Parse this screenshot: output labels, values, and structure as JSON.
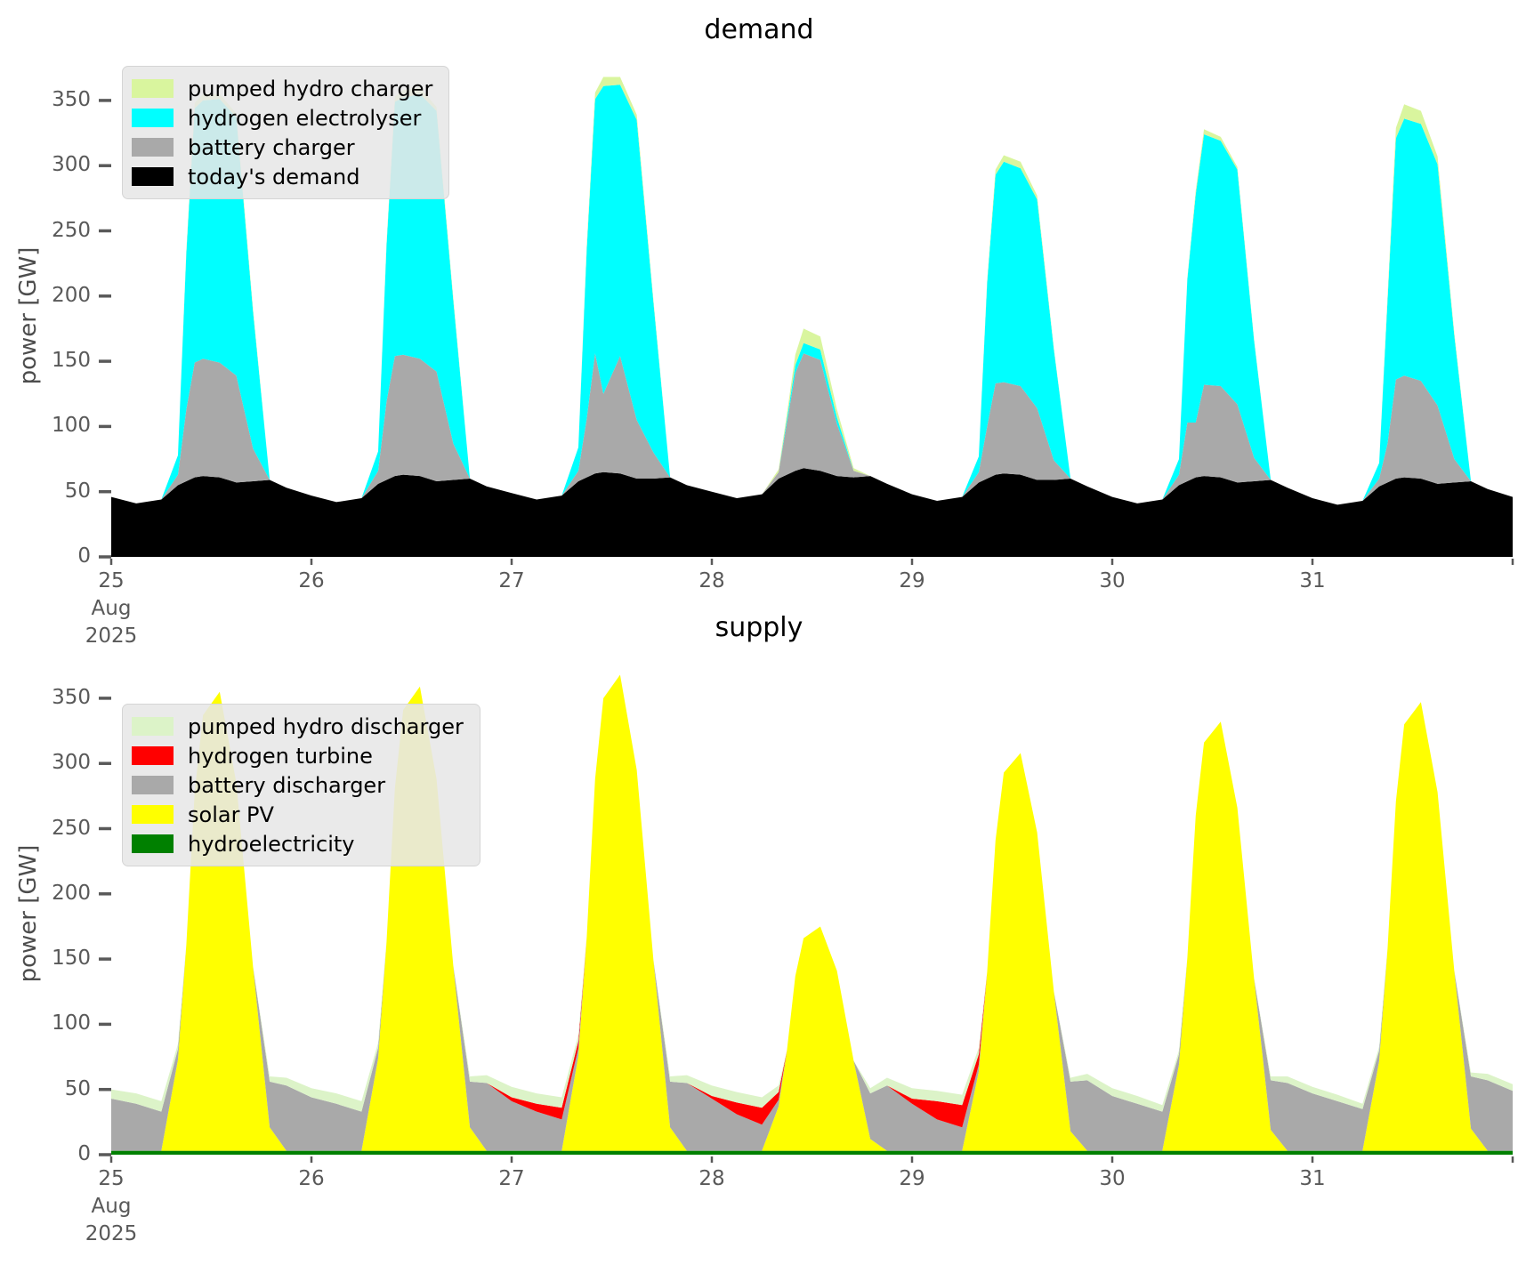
{
  "chart_data": [
    {
      "type": "area",
      "title": "demand",
      "ylabel": "power [GW]",
      "x_start_label_lines": [
        "25",
        "Aug",
        "2025"
      ],
      "x_tick_labels": [
        "25",
        "26",
        "27",
        "28",
        "29",
        "30",
        "31",
        ""
      ],
      "x_tick_hours": [
        0,
        24,
        48,
        72,
        96,
        120,
        144,
        168
      ],
      "y_ticks": [
        0,
        50,
        100,
        150,
        200,
        250,
        300,
        350
      ],
      "ylim": [
        0,
        372
      ],
      "xlim_hours": [
        0,
        168
      ],
      "grid": false,
      "legend_position": "upper left",
      "legend": [
        {
          "label": "pumped hydro charger",
          "color": "#d9f59e"
        },
        {
          "label": "hydrogen electrolyser",
          "color": "#00ffff"
        },
        {
          "label": "battery charger",
          "color": "#a9a9a9"
        },
        {
          "label": "today's demand",
          "color": "#000000"
        }
      ],
      "x_hours": [
        0,
        3,
        6,
        8,
        9,
        10,
        11,
        13,
        15,
        17,
        19,
        21,
        24,
        27,
        30,
        32,
        33,
        34,
        35,
        37,
        39,
        41,
        43,
        45,
        48,
        51,
        54,
        56,
        57,
        58,
        59,
        61,
        63,
        65,
        67,
        69,
        72,
        75,
        78,
        80,
        81,
        82,
        83,
        85,
        87,
        89,
        91,
        93,
        96,
        99,
        102,
        104,
        105,
        106,
        107,
        109,
        111,
        113,
        115,
        117,
        120,
        123,
        126,
        128,
        129,
        130,
        131,
        133,
        135,
        137,
        139,
        141,
        144,
        147,
        150,
        152,
        153,
        154,
        155,
        157,
        159,
        161,
        163,
        165,
        168
      ],
      "series": [
        {
          "name": "today's demand",
          "color": "#000000",
          "values": [
            46,
            41,
            44,
            55,
            58,
            61,
            62,
            61,
            57,
            58,
            59,
            53,
            47,
            42,
            45,
            56,
            59,
            62,
            63,
            62,
            58,
            59,
            60,
            54,
            49,
            44,
            47,
            58,
            61,
            64,
            65,
            64,
            60,
            60,
            61,
            55,
            50,
            45,
            48,
            60,
            63,
            66,
            68,
            66,
            62,
            61,
            62,
            56,
            48,
            43,
            46,
            57,
            60,
            63,
            64,
            63,
            59,
            59,
            60,
            54,
            46,
            41,
            44,
            55,
            58,
            61,
            62,
            61,
            57,
            58,
            59,
            53,
            45,
            40,
            43,
            54,
            57,
            60,
            61,
            60,
            56,
            57,
            58,
            52,
            46
          ]
        },
        {
          "name": "battery charger",
          "color": "#a9a9a9",
          "values": [
            0,
            0,
            0,
            8,
            55,
            88,
            90,
            88,
            82,
            25,
            0,
            0,
            0,
            0,
            0,
            10,
            60,
            92,
            92,
            90,
            84,
            28,
            0,
            0,
            0,
            0,
            0,
            8,
            45,
            92,
            60,
            90,
            45,
            20,
            0,
            0,
            0,
            0,
            0,
            5,
            40,
            75,
            88,
            85,
            40,
            5,
            0,
            0,
            0,
            0,
            0,
            8,
            40,
            70,
            70,
            68,
            55,
            15,
            0,
            0,
            0,
            0,
            0,
            8,
            45,
            42,
            70,
            70,
            60,
            18,
            0,
            0,
            0,
            0,
            0,
            6,
            30,
            76,
            78,
            75,
            60,
            18,
            0,
            0,
            0
          ]
        },
        {
          "name": "hydrogen electrolyser",
          "color": "#00ffff",
          "values": [
            0,
            0,
            0,
            15,
            120,
            195,
            198,
            202,
            198,
            105,
            0,
            0,
            0,
            0,
            0,
            15,
            120,
            195,
            197,
            203,
            200,
            110,
            0,
            0,
            0,
            0,
            0,
            18,
            130,
            195,
            236,
            208,
            230,
            115,
            0,
            0,
            0,
            0,
            0,
            0,
            3,
            6,
            8,
            8,
            5,
            0,
            0,
            0,
            0,
            0,
            0,
            12,
            110,
            160,
            169,
            167,
            160,
            85,
            0,
            0,
            0,
            0,
            0,
            12,
            110,
            175,
            192,
            188,
            180,
            90,
            0,
            0,
            0,
            0,
            0,
            12,
            110,
            185,
            197,
            197,
            185,
            95,
            0,
            0,
            0
          ]
        },
        {
          "name": "pumped hydro charger",
          "color": "#d9f59e",
          "values": [
            0,
            0,
            0,
            0,
            2,
            4,
            5,
            4,
            3,
            2,
            0,
            0,
            0,
            0,
            0,
            0,
            2,
            4,
            6,
            5,
            3,
            2,
            0,
            0,
            0,
            0,
            0,
            0,
            3,
            5,
            7,
            6,
            4,
            2,
            0,
            0,
            0,
            0,
            0,
            2,
            4,
            8,
            11,
            10,
            6,
            2,
            0,
            0,
            0,
            0,
            0,
            0,
            2,
            4,
            5,
            5,
            3,
            1,
            0,
            0,
            0,
            0,
            0,
            0,
            1,
            3,
            4,
            3,
            2,
            1,
            0,
            0,
            0,
            0,
            0,
            0,
            3,
            8,
            11,
            10,
            6,
            2,
            0,
            0,
            0
          ]
        }
      ]
    },
    {
      "type": "area",
      "title": "supply",
      "ylabel": "power [GW]",
      "x_start_label_lines": [
        "25",
        "Aug",
        "2025"
      ],
      "x_tick_labels": [
        "25",
        "26",
        "27",
        "28",
        "29",
        "30",
        "31",
        ""
      ],
      "x_tick_hours": [
        0,
        24,
        48,
        72,
        96,
        120,
        144,
        168
      ],
      "y_ticks": [
        0,
        50,
        100,
        150,
        200,
        250,
        300,
        350
      ],
      "ylim": [
        0,
        372
      ],
      "xlim_hours": [
        0,
        168
      ],
      "grid": false,
      "legend_position": "upper left",
      "legend": [
        {
          "label": "pumped hydro discharger",
          "color": "#dcf3c8"
        },
        {
          "label": "hydrogen turbine",
          "color": "#ff0000"
        },
        {
          "label": "battery discharger",
          "color": "#a9a9a9"
        },
        {
          "label": "solar PV",
          "color": "#ffff00"
        },
        {
          "label": "hydroelectricity",
          "color": "#008000"
        }
      ],
      "x_hours": [
        0,
        3,
        6,
        8,
        9,
        10,
        11,
        13,
        15,
        17,
        19,
        21,
        24,
        27,
        30,
        32,
        33,
        34,
        35,
        37,
        39,
        41,
        43,
        45,
        48,
        51,
        54,
        56,
        57,
        58,
        59,
        61,
        63,
        65,
        67,
        69,
        72,
        75,
        78,
        80,
        81,
        82,
        83,
        85,
        87,
        89,
        91,
        93,
        96,
        99,
        102,
        104,
        105,
        106,
        107,
        109,
        111,
        113,
        115,
        117,
        120,
        123,
        126,
        128,
        129,
        130,
        131,
        133,
        135,
        137,
        139,
        141,
        144,
        147,
        150,
        152,
        153,
        154,
        155,
        157,
        159,
        161,
        163,
        165,
        168
      ],
      "series": [
        {
          "name": "hydroelectricity",
          "color": "#008000",
          "values": [
            3,
            3,
            3,
            3,
            3,
            3,
            3,
            3,
            3,
            3,
            3,
            3,
            3,
            3,
            3,
            3,
            3,
            3,
            3,
            3,
            3,
            3,
            3,
            3,
            3,
            3,
            3,
            3,
            3,
            3,
            3,
            3,
            3,
            3,
            3,
            3,
            3,
            3,
            3,
            3,
            3,
            3,
            3,
            3,
            3,
            3,
            3,
            3,
            3,
            3,
            3,
            3,
            3,
            3,
            3,
            3,
            3,
            3,
            3,
            3,
            3,
            3,
            3,
            3,
            3,
            3,
            3,
            3,
            3,
            3,
            3,
            3,
            3,
            3,
            3,
            3,
            3,
            3,
            3,
            3,
            3,
            3,
            3,
            3,
            3
          ]
        },
        {
          "name": "solar PV",
          "color": "#ffff00",
          "values": [
            0,
            0,
            0,
            70,
            158,
            275,
            334,
            352,
            282,
            141,
            18,
            0,
            0,
            0,
            0,
            71,
            160,
            278,
            338,
            356,
            285,
            142,
            18,
            0,
            0,
            0,
            0,
            73,
            164,
            285,
            347,
            365,
            292,
            146,
            18,
            0,
            0,
            0,
            0,
            34,
            77,
            134,
            163,
            172,
            138,
            69,
            9,
            0,
            0,
            0,
            0,
            61,
            137,
            238,
            290,
            305,
            244,
            122,
            15,
            0,
            0,
            0,
            0,
            66,
            148,
            257,
            313,
            329,
            263,
            132,
            16,
            0,
            0,
            0,
            0,
            69,
            155,
            268,
            327,
            344,
            275,
            138,
            17,
            0,
            0
          ]
        },
        {
          "name": "battery discharger",
          "color": "#a9a9a9",
          "values": [
            40,
            36,
            30,
            8,
            0,
            0,
            0,
            0,
            0,
            0,
            35,
            50,
            41,
            36,
            30,
            8,
            0,
            0,
            0,
            0,
            0,
            0,
            35,
            52,
            38,
            30,
            24,
            6,
            0,
            0,
            0,
            0,
            0,
            0,
            35,
            52,
            40,
            28,
            20,
            5,
            0,
            0,
            0,
            0,
            0,
            0,
            35,
            50,
            36,
            24,
            18,
            5,
            0,
            0,
            0,
            0,
            0,
            0,
            38,
            54,
            42,
            36,
            30,
            8,
            0,
            0,
            0,
            0,
            0,
            0,
            38,
            52,
            44,
            38,
            32,
            8,
            0,
            0,
            0,
            0,
            0,
            0,
            40,
            54,
            46
          ]
        },
        {
          "name": "hydrogen turbine",
          "color": "#ff0000",
          "values": [
            0,
            0,
            0,
            0,
            0,
            0,
            0,
            0,
            0,
            0,
            0,
            0,
            0,
            0,
            0,
            0,
            0,
            0,
            0,
            0,
            0,
            0,
            0,
            0,
            3,
            6,
            9,
            5,
            0,
            0,
            0,
            0,
            0,
            0,
            0,
            0,
            2,
            9,
            13,
            6,
            0,
            0,
            0,
            0,
            0,
            0,
            0,
            0,
            4,
            14,
            17,
            8,
            0,
            0,
            0,
            0,
            0,
            0,
            0,
            0,
            0,
            0,
            0,
            0,
            0,
            0,
            0,
            0,
            0,
            0,
            0,
            0,
            0,
            0,
            0,
            0,
            0,
            0,
            0,
            0,
            0,
            0,
            0,
            0,
            0
          ]
        },
        {
          "name": "pumped hydro discharger",
          "color": "#dcf3c8",
          "values": [
            7,
            8,
            8,
            4,
            0,
            0,
            0,
            0,
            0,
            0,
            4,
            6,
            7,
            8,
            8,
            4,
            0,
            0,
            0,
            0,
            0,
            0,
            4,
            6,
            8,
            8,
            8,
            5,
            0,
            0,
            0,
            0,
            0,
            0,
            4,
            6,
            8,
            8,
            8,
            5,
            0,
            0,
            0,
            0,
            0,
            0,
            4,
            6,
            8,
            8,
            8,
            5,
            0,
            0,
            0,
            0,
            0,
            0,
            3,
            5,
            6,
            6,
            5,
            3,
            0,
            0,
            0,
            0,
            0,
            0,
            3,
            5,
            5,
            5,
            4,
            3,
            0,
            0,
            0,
            0,
            0,
            0,
            3,
            5,
            5
          ]
        }
      ]
    }
  ]
}
